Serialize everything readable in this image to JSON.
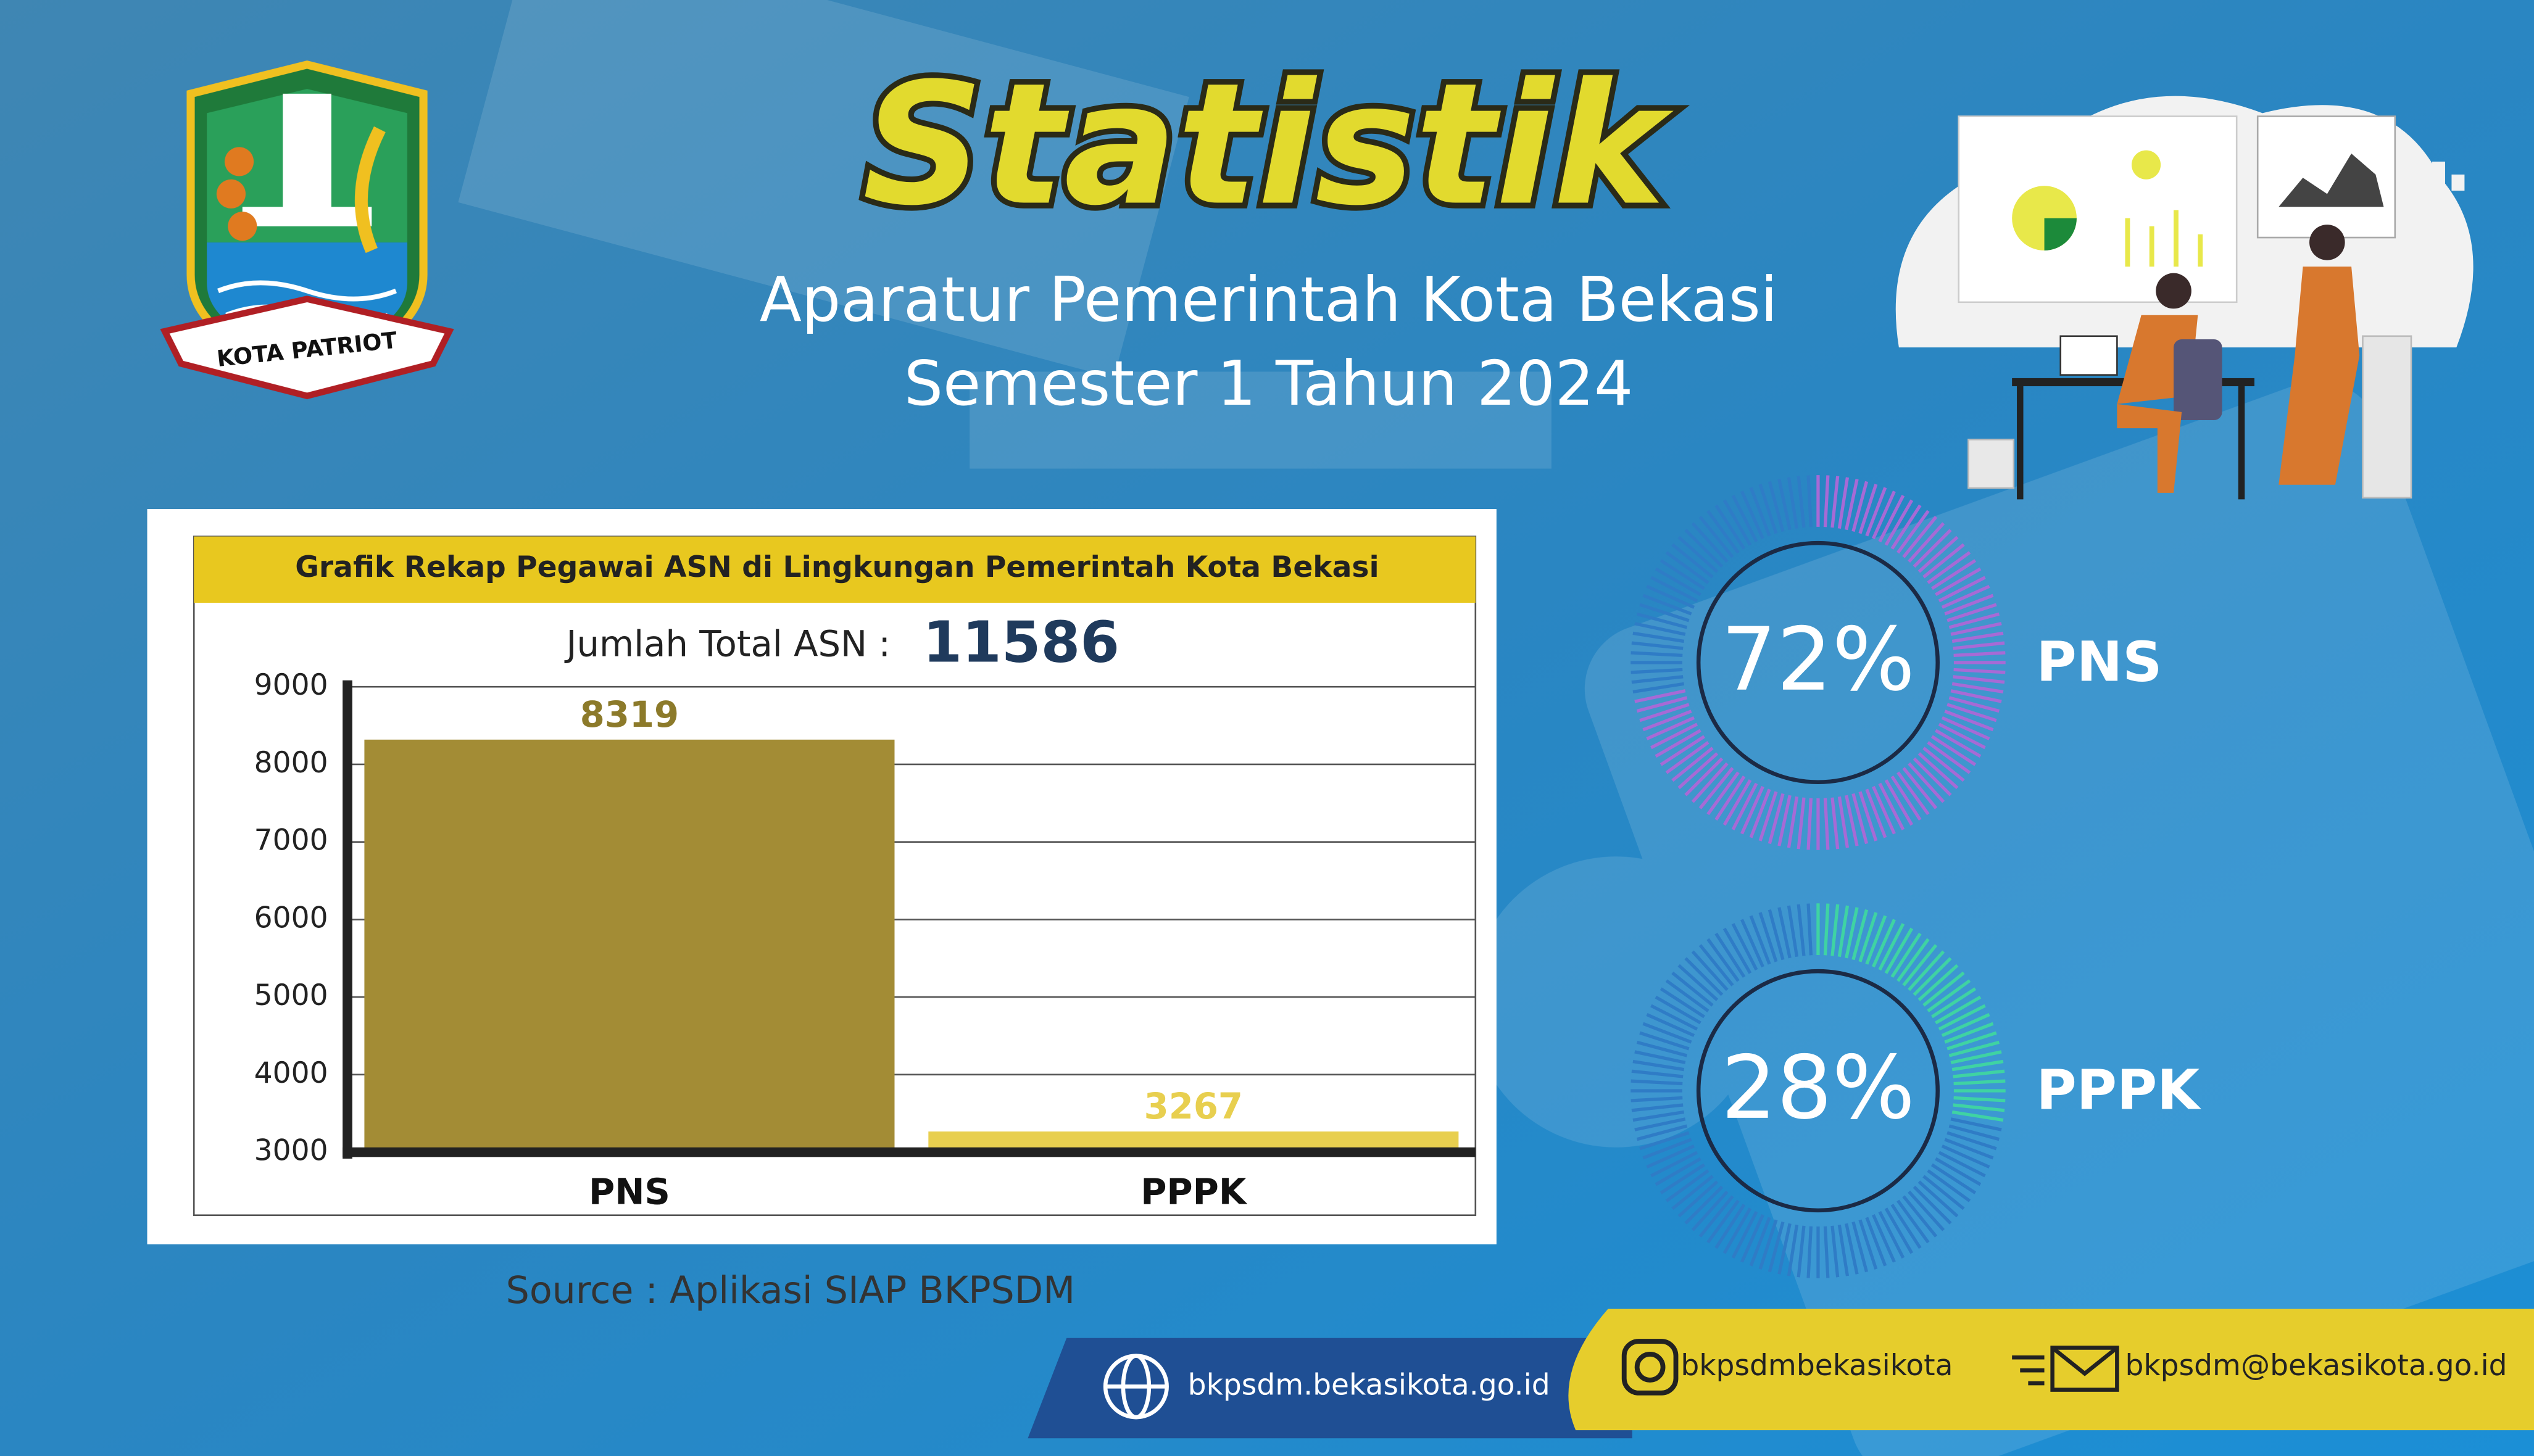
{
  "header": {
    "title": "Statistik",
    "subtitle_line1": "Aparatur Pemerintah Kota Bekasi",
    "subtitle_line2": "Semester 1 Tahun 2024"
  },
  "logo": {
    "motto": "KOTA PATRIOT"
  },
  "chart_data": [
    {
      "type": "bar",
      "title": "Grafik Rekap Pegawai ASN di Lingkungan Pemerintah Kota Bekasi",
      "total_label": "Jumlah Total ASN :",
      "total_value": 11586,
      "categories": [
        "PNS",
        "PPPK"
      ],
      "values": [
        8319,
        3267
      ],
      "colors": [
        "#a38c35",
        "#e8cf4f"
      ],
      "ylim": [
        3000,
        9000
      ],
      "yticks": [
        3000,
        4000,
        5000,
        6000,
        7000,
        8000,
        9000
      ],
      "grid": true
    },
    {
      "type": "donut",
      "categories": [
        "PNS",
        "PPPK"
      ],
      "values": [
        72,
        28
      ],
      "value_labels": [
        "72%",
        "28%"
      ],
      "colors": [
        "#a76ad6",
        "#3fd3a3"
      ]
    }
  ],
  "source": "Source : Aplikasi SIAP BKPSDM",
  "footer": {
    "website": "bkpsdm.bekasikota.go.id",
    "instagram": "bkpsdmbekasikota",
    "email": "bkpsdm@bekasikota.go.id"
  }
}
